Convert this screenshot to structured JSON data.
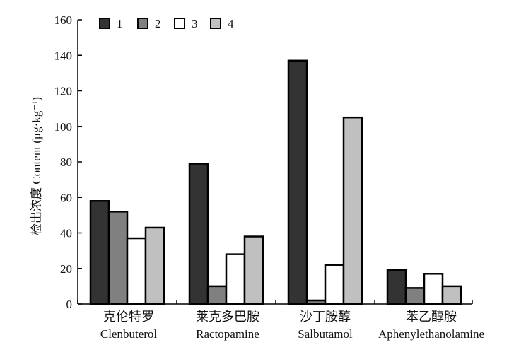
{
  "chart_data": {
    "type": "bar",
    "ylabel": "检出浓度 Content (μg·kg⁻¹)",
    "ylim": [
      0,
      160
    ],
    "yticks": [
      "0",
      "20",
      "40",
      "60",
      "80",
      "100",
      "120",
      "140",
      "160"
    ],
    "categories": [
      {
        "zh": "克伦特罗",
        "en": "Clenbuterol"
      },
      {
        "zh": "莱克多巴胺",
        "en": "Ractopamine"
      },
      {
        "zh": "沙丁胺醇",
        "en": "Salbutamol"
      },
      {
        "zh": "苯乙醇胺",
        "en": "Aphenylethanolamine"
      }
    ],
    "series": [
      {
        "name": "1",
        "color": "#333333",
        "values": [
          58,
          79,
          137,
          19
        ]
      },
      {
        "name": "2",
        "color": "#808080",
        "values": [
          52,
          10,
          2,
          9
        ]
      },
      {
        "name": "3",
        "color": "#ffffff",
        "values": [
          37,
          28,
          22,
          17
        ]
      },
      {
        "name": "4",
        "color": "#c0c0c0",
        "values": [
          43,
          38,
          105,
          10
        ]
      }
    ],
    "legend_position": "top-left",
    "grid": false
  }
}
